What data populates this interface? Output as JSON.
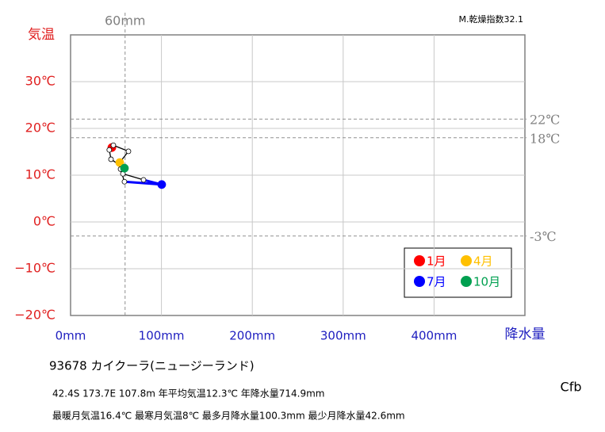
{
  "chart_data": {
    "type": "climograph",
    "y_label": "気温",
    "x_label": "降水量",
    "dryness_index": "M.乾燥指数32.1",
    "station": "93678  カイクーラ(ニュージーランド)",
    "info": [
      "42.4S  173.7E 107.8m  年平均気温12.3℃ 年降水量714.9mm",
      "最暖月気温16.4℃ 最寒月気温8℃ 最多月降水量100.3mm 最少月降水量42.6mm"
    ],
    "climate": "Cfb",
    "xlim": [
      0,
      500
    ],
    "ylim": [
      -20,
      40
    ],
    "xticks": [
      {
        "value": 0,
        "label": "0mm"
      },
      {
        "value": 100,
        "label": "100mm"
      },
      {
        "value": 200,
        "label": "200mm"
      },
      {
        "value": 300,
        "label": "300mm"
      },
      {
        "value": 400,
        "label": "400mm"
      }
    ],
    "yticks": [
      {
        "value": -20,
        "label": "−20℃"
      },
      {
        "value": -10,
        "label": "−10℃"
      },
      {
        "value": 0,
        "label": "0℃"
      },
      {
        "value": 10,
        "label": "10℃"
      },
      {
        "value": 20,
        "label": "20℃"
      },
      {
        "value": 30,
        "label": "30℃"
      }
    ],
    "y_refs": [
      {
        "value": 22,
        "label": "22℃"
      },
      {
        "value": 18,
        "label": "18℃"
      },
      {
        "value": -3,
        "label": "-3℃"
      }
    ],
    "x_refs": [
      {
        "value": 60,
        "label": "60mm"
      }
    ],
    "grid": true,
    "x": [
      45.4,
      47.1,
      63.7,
      54.1,
      55.0,
      59.3,
      100.3,
      80.3,
      57.6,
      59.3,
      44.5,
      42.6
    ],
    "series": [
      {
        "values": [
          15.9,
          16.4,
          15.1,
          12.7,
          11.3,
          8.6,
          8.0,
          9.0,
          10.3,
          11.5,
          13.4,
          15.4
        ],
        "point_colors": [
          "#ff0000",
          "#ffffff",
          "#ffffff",
          "#ffc000",
          "#ffffff",
          "#ffffff",
          "#0000ff",
          "#ffffff",
          "#ffffff",
          "#00a050",
          "#ffffff",
          "#ffffff"
        ],
        "segment_colors": [
          "#000000",
          "#000000",
          "#000000",
          "#000000",
          "#000000",
          "#0000ff",
          "#0000ff",
          "#000000",
          "#000000",
          "#000000",
          "#000000",
          "#000000"
        ]
      }
    ],
    "legend": [
      {
        "label": "1月",
        "color": "#ff0000"
      },
      {
        "label": "4月",
        "color": "#ffc000"
      },
      {
        "label": "7月",
        "color": "#0000ff"
      },
      {
        "label": "10月",
        "color": "#00a050"
      }
    ]
  }
}
